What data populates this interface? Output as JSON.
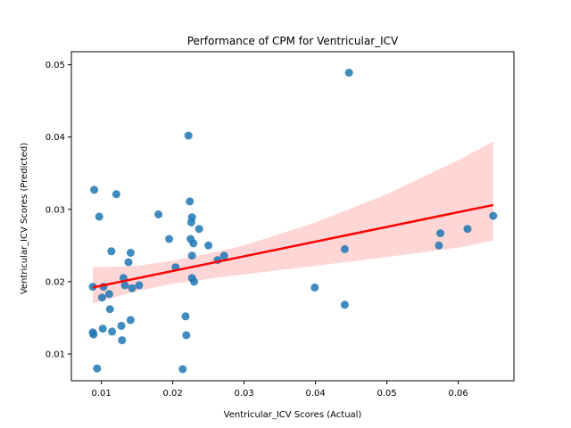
{
  "chart_data": {
    "type": "scatter",
    "title": "Performance of CPM for Ventricular_ICV",
    "xlabel": "Ventricular_ICV Scores (Actual)",
    "ylabel": "Ventricular_ICV Scores (Predicted)",
    "xlim": [
      0.0058,
      0.0678
    ],
    "ylim": [
      0.0063,
      0.0518
    ],
    "xticks": [
      "0.01",
      "0.02",
      "0.03",
      "0.04",
      "0.05",
      "0.06"
    ],
    "yticks": [
      "0.01",
      "0.02",
      "0.03",
      "0.04",
      "0.05"
    ],
    "grid": false,
    "colors": {
      "points": "#1f77b4",
      "regression_line": "#ff0000",
      "confidence_band": "#ff9999"
    },
    "points": [
      [
        0.0088,
        0.0193
      ],
      [
        0.0088,
        0.013
      ],
      [
        0.0089,
        0.0127
      ],
      [
        0.009,
        0.0327
      ],
      [
        0.0094,
        0.008
      ],
      [
        0.0097,
        0.029
      ],
      [
        0.0101,
        0.0178
      ],
      [
        0.0102,
        0.0135
      ],
      [
        0.0103,
        0.0193
      ],
      [
        0.0111,
        0.0183
      ],
      [
        0.0112,
        0.0162
      ],
      [
        0.0114,
        0.0242
      ],
      [
        0.0115,
        0.0131
      ],
      [
        0.0121,
        0.0321
      ],
      [
        0.0128,
        0.0139
      ],
      [
        0.0129,
        0.0119
      ],
      [
        0.0131,
        0.0205
      ],
      [
        0.0133,
        0.0195
      ],
      [
        0.0138,
        0.0227
      ],
      [
        0.0141,
        0.0147
      ],
      [
        0.0141,
        0.024
      ],
      [
        0.0143,
        0.0191
      ],
      [
        0.0153,
        0.0195
      ],
      [
        0.018,
        0.0293
      ],
      [
        0.0195,
        0.0259
      ],
      [
        0.0204,
        0.022
      ],
      [
        0.0214,
        0.0079
      ],
      [
        0.0218,
        0.0152
      ],
      [
        0.0219,
        0.0126
      ],
      [
        0.0222,
        0.0402
      ],
      [
        0.0224,
        0.0311
      ],
      [
        0.0225,
        0.0259
      ],
      [
        0.0226,
        0.0282
      ],
      [
        0.0227,
        0.0289
      ],
      [
        0.0227,
        0.0236
      ],
      [
        0.0227,
        0.0205
      ],
      [
        0.0229,
        0.0253
      ],
      [
        0.023,
        0.02
      ],
      [
        0.0237,
        0.0273
      ],
      [
        0.025,
        0.025
      ],
      [
        0.0263,
        0.023
      ],
      [
        0.0272,
        0.0236
      ],
      [
        0.0399,
        0.0192
      ],
      [
        0.0441,
        0.0168
      ],
      [
        0.0441,
        0.0245
      ],
      [
        0.0447,
        0.0489
      ],
      [
        0.0573,
        0.025
      ],
      [
        0.0575,
        0.0267
      ],
      [
        0.0613,
        0.0273
      ],
      [
        0.0649,
        0.0291
      ]
    ],
    "regression": {
      "x_start": 0.0088,
      "y_start": 0.0192,
      "x_end": 0.0649,
      "y_end": 0.0306
    },
    "confidence_band": {
      "x": [
        0.0088,
        0.015,
        0.02,
        0.025,
        0.03,
        0.04,
        0.05,
        0.06,
        0.0649
      ],
      "upper": [
        0.022,
        0.0222,
        0.0229,
        0.0239,
        0.025,
        0.0282,
        0.0321,
        0.0368,
        0.0394
      ],
      "lower": [
        0.017,
        0.0187,
        0.0197,
        0.0204,
        0.021,
        0.0222,
        0.0234,
        0.0247,
        0.0257
      ]
    }
  }
}
